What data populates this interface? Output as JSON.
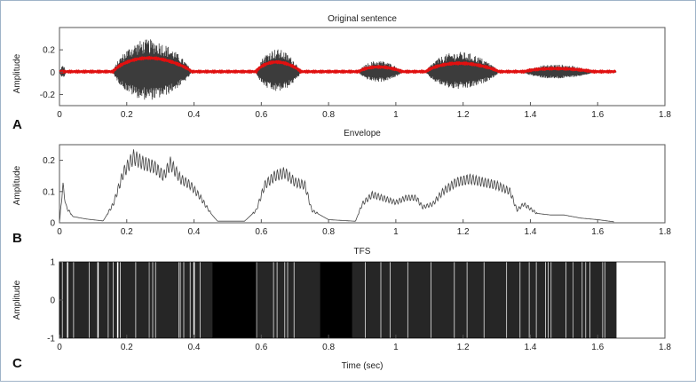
{
  "figure": {
    "xlabel": "Time (sec)",
    "panels": [
      {
        "letter": "A",
        "title": "Original sentence",
        "ylabel": "Amplitude"
      },
      {
        "letter": "B",
        "title": "Envelope",
        "ylabel": "Amplitude"
      },
      {
        "letter": "C",
        "title": "TFS",
        "ylabel": "Amplitude"
      }
    ]
  },
  "chart_data": [
    {
      "type": "line",
      "title": "Original sentence",
      "xlabel": "",
      "ylabel": "Amplitude",
      "xlim": [
        0,
        1.8
      ],
      "ylim": [
        -0.3,
        0.4
      ],
      "xticks": [
        "0",
        "0.2",
        "0.4",
        "0.6",
        "0.8",
        "1",
        "1.2",
        "1.4",
        "1.6",
        "1.8"
      ],
      "yticks": [
        "-0.2",
        "0",
        "0.2"
      ],
      "colors": {
        "waveform": "#1a1a1a",
        "envelope": "#e01010"
      },
      "segments": [
        {
          "start": 0.16,
          "end": 0.45,
          "peak": 0.34
        },
        {
          "start": 0.585,
          "end": 0.75,
          "peak": 0.24
        },
        {
          "start": 0.89,
          "end": 1.05,
          "peak": 0.12
        },
        {
          "start": 1.09,
          "end": 1.36,
          "peak": 0.21
        },
        {
          "start": 1.38,
          "end": 1.64,
          "peak": 0.08
        }
      ]
    },
    {
      "type": "line",
      "title": "Envelope",
      "xlabel": "",
      "ylabel": "Amplitude",
      "xlim": [
        0,
        1.8
      ],
      "ylim": [
        0,
        0.25
      ],
      "xticks": [
        "0",
        "0.2",
        "0.4",
        "0.6",
        "0.8",
        "1",
        "1.2",
        "1.4",
        "1.6",
        "1.8"
      ],
      "yticks": [
        "0",
        "0.1",
        "0.2"
      ],
      "x": [
        0,
        0.01,
        0.02,
        0.04,
        0.08,
        0.13,
        0.16,
        0.19,
        0.22,
        0.25,
        0.28,
        0.31,
        0.33,
        0.36,
        0.39,
        0.42,
        0.45,
        0.47,
        0.55,
        0.585,
        0.61,
        0.64,
        0.67,
        0.7,
        0.73,
        0.75,
        0.8,
        0.88,
        0.9,
        0.93,
        0.96,
        1.0,
        1.03,
        1.06,
        1.08,
        1.11,
        1.14,
        1.18,
        1.22,
        1.26,
        1.3,
        1.34,
        1.36,
        1.38,
        1.42,
        1.46,
        1.5,
        1.55,
        1.6,
        1.65
      ],
      "y": [
        0,
        0.12,
        0.05,
        0.02,
        0.012,
        0.006,
        0.06,
        0.16,
        0.21,
        0.19,
        0.18,
        0.15,
        0.19,
        0.14,
        0.12,
        0.08,
        0.03,
        0.005,
        0.005,
        0.04,
        0.12,
        0.15,
        0.16,
        0.13,
        0.12,
        0.04,
        0.01,
        0.005,
        0.06,
        0.09,
        0.08,
        0.065,
        0.08,
        0.08,
        0.05,
        0.06,
        0.1,
        0.13,
        0.14,
        0.13,
        0.12,
        0.1,
        0.04,
        0.06,
        0.03,
        0.025,
        0.025,
        0.015,
        0.01,
        0.003
      ],
      "color": "#444444"
    },
    {
      "type": "line",
      "title": "TFS",
      "xlabel": "Time (sec)",
      "ylabel": "Amplitude",
      "xlim": [
        0,
        1.8
      ],
      "ylim": [
        -1,
        1
      ],
      "xticks": [
        "0",
        "0.2",
        "0.4",
        "0.6",
        "0.8",
        "1",
        "1.2",
        "1.4",
        "1.6",
        "1.8"
      ],
      "yticks": [
        "-1",
        "0",
        "1"
      ],
      "signal_extent": [
        0,
        1.655
      ],
      "dense_regions": [
        [
          0.455,
          0.585
        ],
        [
          0.775,
          0.87
        ]
      ],
      "color": "#000000"
    }
  ]
}
